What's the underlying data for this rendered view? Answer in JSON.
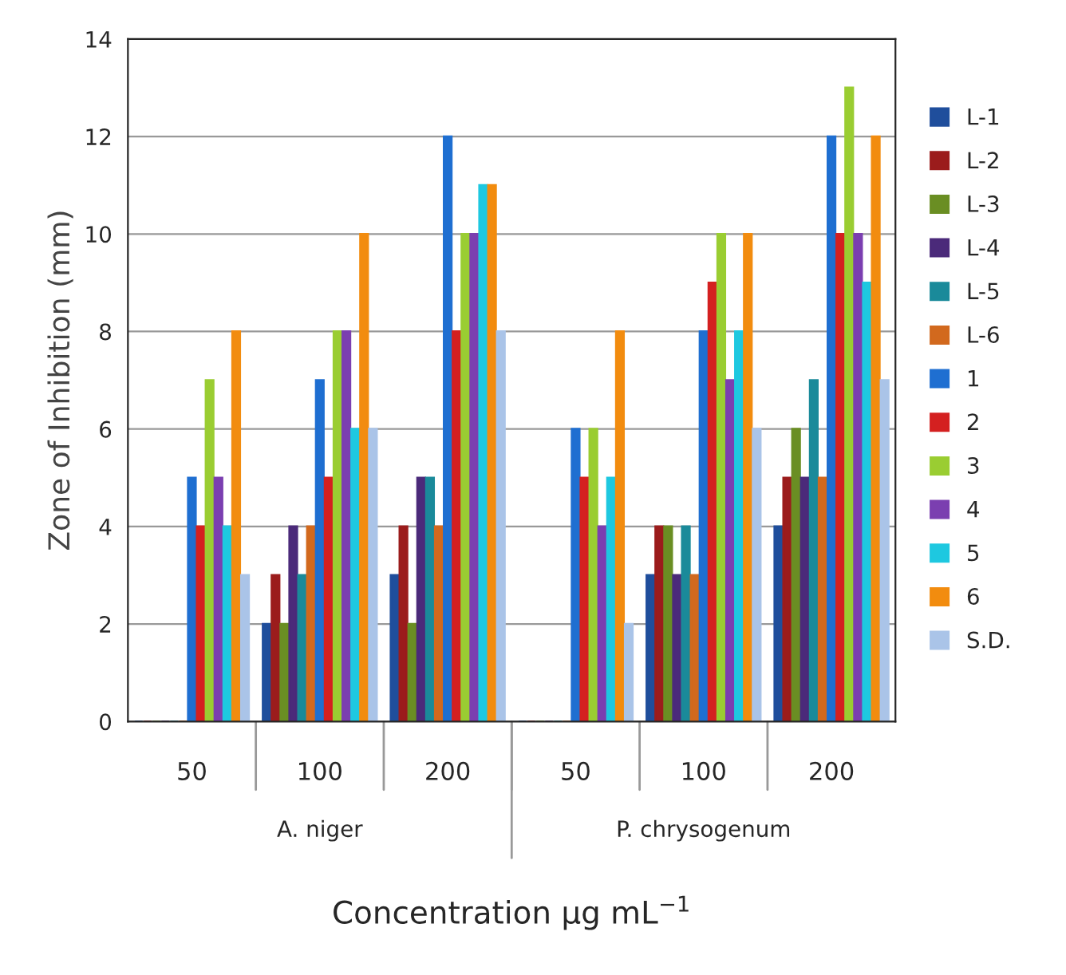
{
  "chart_data": {
    "type": "bar",
    "xlabel": "Concentration µg mL$^{−1}$",
    "ylabel": "Zone of Inhibition (mm)",
    "categories": [
      "50",
      "100",
      "200",
      "50",
      "100",
      "200"
    ],
    "annotations": [
      "A. niger",
      "P. chrysogenum"
    ],
    "ylim": [
      0,
      14
    ],
    "yticks": [
      0,
      2,
      4,
      6,
      8,
      10,
      12,
      14
    ],
    "grid": "y",
    "legend": "right",
    "series": [
      {
        "name": "L-1",
        "color": "#1f4e9c",
        "values": [
          0,
          2,
          3,
          0,
          3,
          4
        ]
      },
      {
        "name": "L-2",
        "color": "#9b1c1c",
        "values": [
          0,
          3,
          4,
          0,
          4,
          5
        ]
      },
      {
        "name": "L-3",
        "color": "#6a8e23",
        "values": [
          0,
          2,
          2,
          0,
          4,
          6
        ]
      },
      {
        "name": "L-4",
        "color": "#4b2a7a",
        "values": [
          0,
          4,
          5,
          0,
          3,
          5
        ]
      },
      {
        "name": "L-5",
        "color": "#1a8a9a",
        "values": [
          0,
          3,
          5,
          0,
          4,
          7
        ]
      },
      {
        "name": "L-6",
        "color": "#d2691e",
        "values": [
          0,
          4,
          4,
          0,
          3,
          5
        ]
      },
      {
        "name": "1",
        "color": "#1f6fd1",
        "values": [
          5,
          7,
          12,
          6,
          8,
          12
        ]
      },
      {
        "name": "2",
        "color": "#d42020",
        "values": [
          4,
          5,
          8,
          5,
          9,
          10
        ]
      },
      {
        "name": "3",
        "color": "#9acd32",
        "values": [
          7,
          8,
          10,
          6,
          10,
          13
        ]
      },
      {
        "name": "4",
        "color": "#7b3fb0",
        "values": [
          5,
          8,
          10,
          4,
          7,
          10
        ]
      },
      {
        "name": "5",
        "color": "#1ec8e0",
        "values": [
          4,
          6,
          11,
          5,
          8,
          9
        ]
      },
      {
        "name": "6",
        "color": "#f28c0f",
        "values": [
          8,
          10,
          11,
          8,
          10,
          12
        ]
      },
      {
        "name": "S.D.",
        "color": "#aac4e8",
        "values": [
          3,
          6,
          8,
          2,
          6,
          7
        ]
      }
    ]
  }
}
